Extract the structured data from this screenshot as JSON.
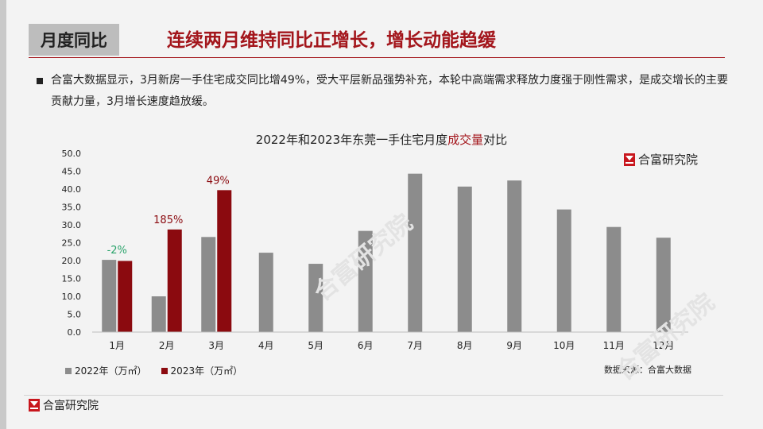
{
  "header": {
    "section": "月度同比",
    "headline": "连续两月维持同比正增长，增长动能趋缓"
  },
  "body": {
    "text": "合富大数据显示，3月新房一手住宅成交同比增49%，受大平层新品强势补充，本轮中高端需求释放力度强于刚性需求，是成交增长的主要贡献力量，3月增长速度趋放缓。"
  },
  "brand": {
    "name": "合富研究院",
    "watermark": "合富研究院"
  },
  "source": "数据来源：合富大数据",
  "colors": {
    "series_2022": "#8c8c8c",
    "series_2023": "#8b0a0f",
    "headline": "#a3151b",
    "positive_label": "#8b0a0f",
    "negative_label": "#2aa36b"
  },
  "chart_data": {
    "type": "bar",
    "title_parts": [
      "2022年和2023年东莞一手住宅月度",
      "成交量",
      "对比"
    ],
    "categories": [
      "1月",
      "2月",
      "3月",
      "4月",
      "5月",
      "6月",
      "7月",
      "8月",
      "9月",
      "10月",
      "11月",
      "12月"
    ],
    "series": [
      {
        "name": "2022年（万㎡）",
        "values": [
          20.2,
          10.0,
          26.6,
          22.2,
          19.1,
          28.3,
          44.3,
          40.7,
          42.4,
          34.3,
          29.4,
          26.4
        ]
      },
      {
        "name": "2023年（万㎡）",
        "values": [
          19.9,
          28.7,
          39.7,
          null,
          null,
          null,
          null,
          null,
          null,
          null,
          null,
          null
        ]
      }
    ],
    "annotations": [
      {
        "category": "1月",
        "text": "-2%",
        "tone": "negative"
      },
      {
        "category": "2月",
        "text": "185%",
        "tone": "positive"
      },
      {
        "category": "3月",
        "text": "49%",
        "tone": "positive"
      }
    ],
    "ylim": [
      0,
      50
    ],
    "yticks": [
      "0.0",
      "5.0",
      "10.0",
      "15.0",
      "20.0",
      "25.0",
      "30.0",
      "35.0",
      "40.0",
      "45.0",
      "50.0"
    ],
    "grid": false,
    "legend": "bottom-left"
  }
}
